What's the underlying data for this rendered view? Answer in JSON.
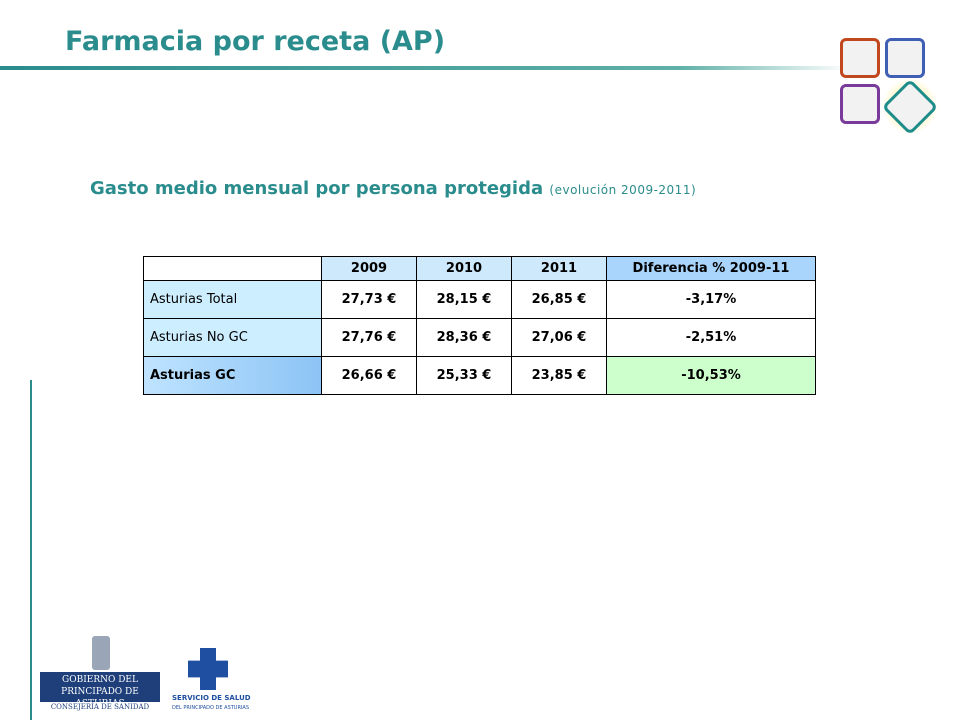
{
  "header": {
    "title": "Farmacia por receta (AP)"
  },
  "subtitle": {
    "main": "Gasto medio mensual por persona protegida",
    "note": "(evolución 2009-2011)"
  },
  "table": {
    "columns": [
      "2009",
      "2010",
      "2011",
      "Diferencia %  2009-11"
    ],
    "rows": [
      [
        "Asturias Total",
        "27,73 €",
        "28,15 €",
        "26,85 €",
        "-3,17%"
      ],
      [
        "Asturias No GC",
        "27,76 €",
        "28,36 €",
        "27,06 €",
        "-2,51%"
      ],
      [
        "Asturias GC",
        "26,66 €",
        "25,33 €",
        "23,85 €",
        "-10,53%"
      ]
    ]
  },
  "logos": {
    "gobierno": [
      "Gobierno del",
      "Principado de Asturias"
    ],
    "consejeria": "Consejería de Sanidad",
    "servicio": "Servicio de Salud",
    "servicio_sub": "del Principado de Asturias"
  }
}
